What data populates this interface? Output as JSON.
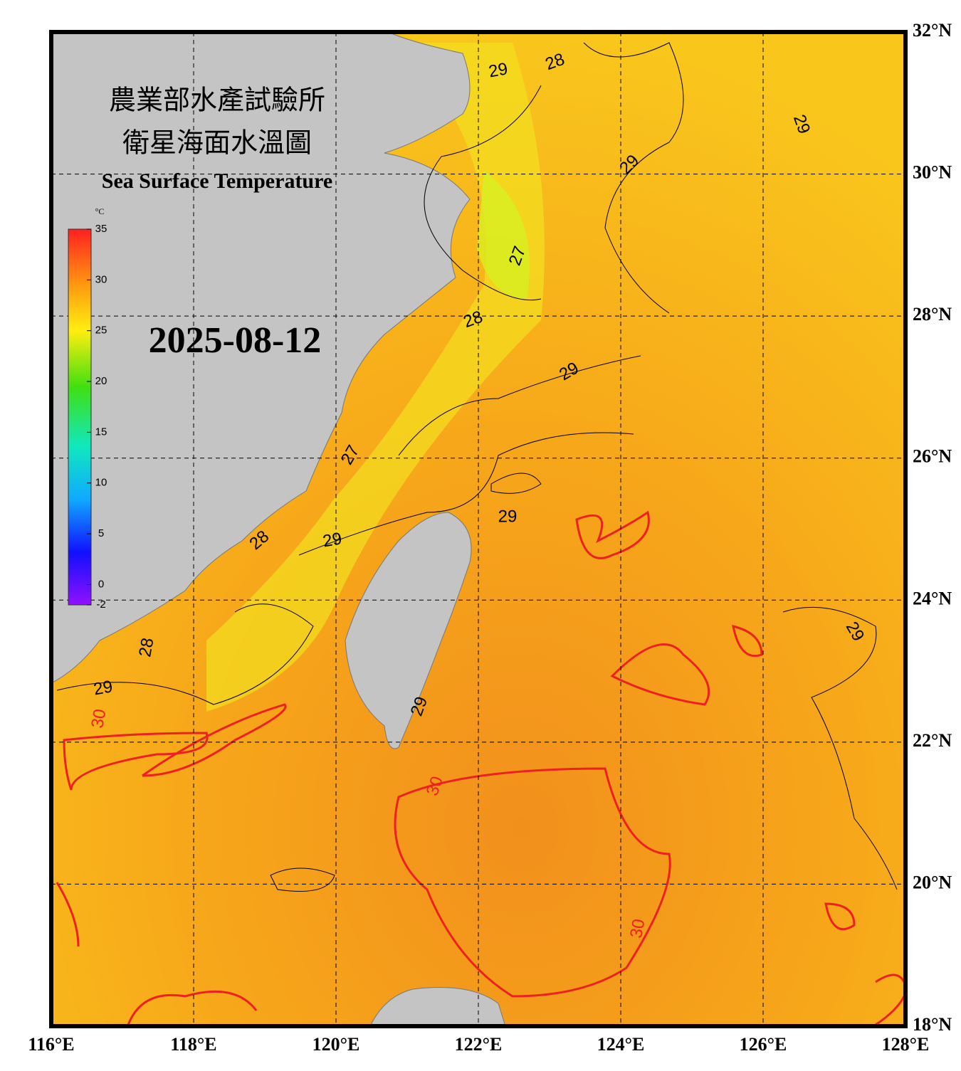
{
  "header": {
    "title_zh_1": "農業部水產試驗所",
    "title_zh_2": "衛星海面水溫圖",
    "title_en": "Sea Surface Temperature"
  },
  "date": "2025-08-12",
  "colorbar": {
    "unit": "°C",
    "ticks": [
      35,
      30,
      25,
      20,
      15,
      10,
      5,
      0,
      -2
    ],
    "range": [
      -2,
      35
    ]
  },
  "map": {
    "lon_ticks": [
      {
        "value": 116,
        "label": "116°E"
      },
      {
        "value": 118,
        "label": "118°E"
      },
      {
        "value": 120,
        "label": "120°E"
      },
      {
        "value": 122,
        "label": "122°E"
      },
      {
        "value": 124,
        "label": "124°E"
      },
      {
        "value": 126,
        "label": "126°E"
      },
      {
        "value": 128,
        "label": "128°E"
      }
    ],
    "lat_ticks": [
      {
        "value": 32,
        "label": "32°N"
      },
      {
        "value": 30,
        "label": "30°N"
      },
      {
        "value": 28,
        "label": "28°N"
      },
      {
        "value": 26,
        "label": "26°N"
      },
      {
        "value": 24,
        "label": "24°N"
      },
      {
        "value": 22,
        "label": "22°N"
      },
      {
        "value": 20,
        "label": "20°N"
      },
      {
        "value": 18,
        "label": "18°N"
      }
    ],
    "lon_range": [
      116,
      128
    ],
    "lat_range": [
      18,
      32
    ]
  },
  "contour_labels": [
    29,
    28,
    29,
    29,
    27,
    28,
    29,
    27,
    29,
    29,
    28,
    28,
    29,
    30,
    29,
    30,
    30,
    29
  ]
}
